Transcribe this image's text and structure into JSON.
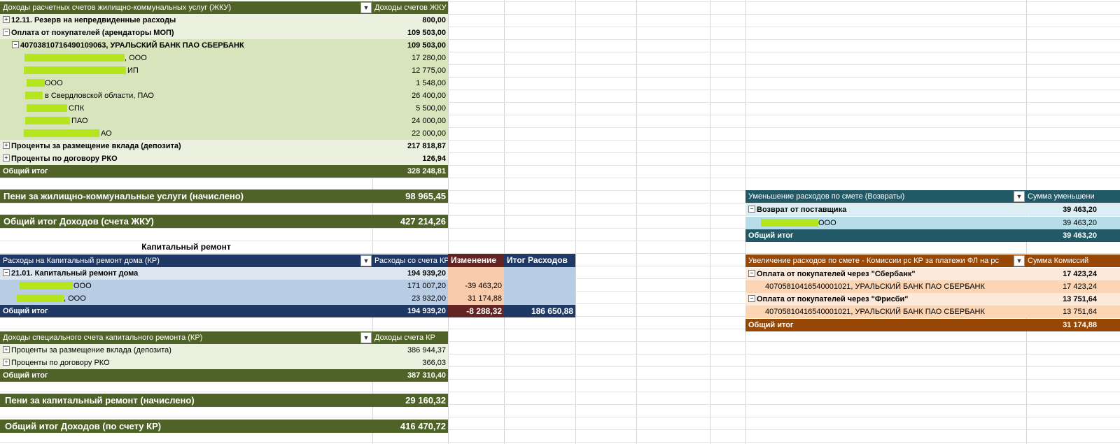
{
  "colors": {
    "olive_dark": "#4f6228",
    "olive_light": "#ebf1de",
    "olive_mid": "#d8e4bc",
    "navy": "#1f3864",
    "blue_light": "#dce6f1",
    "blue_mid": "#b8cce4",
    "teal": "#215967",
    "teal_light": "#b7dee8",
    "brown": "#974706",
    "peach": "#fcd5b4",
    "peach_light": "#fde9d9",
    "maroon": "#632523",
    "salmon": "#f8cbad",
    "redaction": "#b5e61d"
  },
  "gku": {
    "header_label": "Доходы расчетных счетов жилищно-коммунальных услуг (ЖКУ)",
    "header_value": "Доходы счетов ЖКУ",
    "rows": [
      {
        "label": "12.11. Резерв на непредвиденные расходы",
        "value": "800,00"
      },
      {
        "label": "Оплата от покупателей (арендаторы МОП)",
        "value": "109 503,00"
      },
      {
        "label": "40703810716490109063, УРАЛЬСКИЙ БАНК ПАО СБЕРБАНК",
        "value": "109 503,00"
      },
      {
        "label": ", ООО",
        "value": "17 280,00"
      },
      {
        "label": "ИП",
        "value": "12 775,00"
      },
      {
        "label": "ООО",
        "value": "1 548,00"
      },
      {
        "label": "в Свердловской области, ПАО",
        "value": "26 400,00"
      },
      {
        "label": "СПК",
        "value": "5 500,00"
      },
      {
        "label": "ПАО",
        "value": "24 000,00"
      },
      {
        "label": "АО",
        "value": "22 000,00"
      },
      {
        "label": "Проценты за размещение вклада (депозита)",
        "value": "217 818,87"
      },
      {
        "label": "Проценты по договору РКО",
        "value": "126,94"
      }
    ],
    "total_label": "Общий итог",
    "total_value": "328 248,81"
  },
  "peni_gku": {
    "label": "Пени за жилищно-коммунальные услуги (начислено)",
    "value": "98 965,45"
  },
  "total_gku": {
    "label": "Общий итог Доходов (счета ЖКУ)",
    "value": "427 214,26"
  },
  "kr_title": "Капитальный ремонт",
  "kr_exp": {
    "header_label": "Расходы на Капитальный ремонт дома (КР)",
    "header_value": "Расходы со счета КР",
    "change_header": "Изменение",
    "total_exp_header": "Итог Расходов",
    "rows": [
      {
        "label": "21.01. Капитальный ремонт дома",
        "value": "194 939,20",
        "change": ""
      },
      {
        "label": "ООО",
        "value": "171 007,20",
        "change": "-39 463,20"
      },
      {
        "label": ", ООО",
        "value": "23 932,00",
        "change": "31 174,88"
      }
    ],
    "total_label": "Общий итог",
    "total_value": "194 939,20",
    "total_change": "-8 288,32",
    "total_final": "186 650,88"
  },
  "kr_inc": {
    "header_label": "Доходы специального счета капитального ремонта (КР)",
    "header_value": "Доходы счета КР",
    "rows": [
      {
        "label": "Проценты за размещение вклада (депозита)",
        "value": "386 944,37"
      },
      {
        "label": "Проценты по договору РКО",
        "value": "366,03"
      }
    ],
    "total_label": "Общий итог",
    "total_value": "387 310,40"
  },
  "peni_kr": {
    "label": "Пени за капитальный ремонт (начислено)",
    "value": "29 160,32"
  },
  "total_kr": {
    "label": "Общий итог Доходов (по счету КР)",
    "value": "416 470,72"
  },
  "returns": {
    "header_label": "Уменьшение расходов по смете (Возвраты)",
    "header_value": "Сумма уменьшени",
    "rows": [
      {
        "label": "Возврат от поставщика",
        "value": "39 463,20"
      },
      {
        "label": "ООО",
        "value": "39 463,20"
      }
    ],
    "total_label": "Общий итог",
    "total_value": "39 463,20"
  },
  "commissions": {
    "header_label": "Увеличение расходов по смете - Комиссии рс КР за платежи ФЛ на рс",
    "header_value": "Сумма Комиссий",
    "rows": [
      {
        "label": "Оплата от покупателей через \"Сбербанк\"",
        "value": "17 423,24"
      },
      {
        "label": "40705810416540001021, УРАЛЬСКИЙ БАНК ПАО СБЕРБАНК",
        "value": "17 423,24"
      },
      {
        "label": "Оплата от покупателей через \"Фрисби\"",
        "value": "13 751,64"
      },
      {
        "label": "40705810416540001021, УРАЛЬСКИЙ БАНК ПАО СБЕРБАНК",
        "value": "13 751,64"
      }
    ],
    "total_label": "Общий итог",
    "total_value": "31 174,88"
  },
  "icons": {
    "filter": "filter-icon",
    "expand": "expand-icon",
    "collapse": "collapse-icon"
  }
}
